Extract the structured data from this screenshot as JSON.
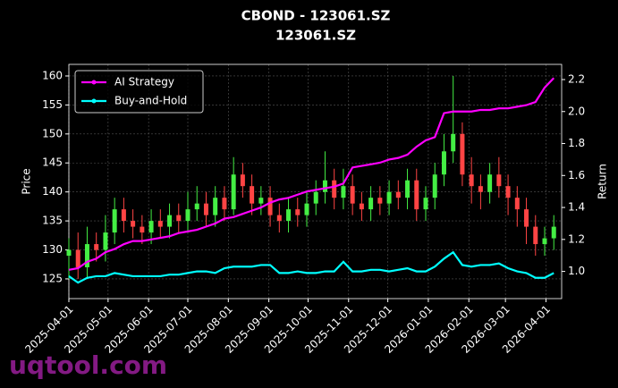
{
  "chart_data": {
    "type": "candlestick",
    "title": "CBOND - 123061.SZ",
    "subtitle": "123061.SZ",
    "ylabel": "Price",
    "y2label": "Return",
    "watermark": "uqtool.com",
    "x": [
      "2025-04-01",
      "2025-04-08",
      "2025-04-15",
      "2025-04-22",
      "2025-04-29",
      "2025-05-06",
      "2025-05-13",
      "2025-05-20",
      "2025-05-27",
      "2025-06-03",
      "2025-06-10",
      "2025-06-17",
      "2025-06-24",
      "2025-07-01",
      "2025-07-08",
      "2025-07-15",
      "2025-07-22",
      "2025-07-29",
      "2025-08-05",
      "2025-08-12",
      "2025-08-19",
      "2025-08-26",
      "2025-09-02",
      "2025-09-09",
      "2025-09-16",
      "2025-09-23",
      "2025-09-30",
      "2025-10-07",
      "2025-10-14",
      "2025-10-21",
      "2025-10-28",
      "2025-11-04",
      "2025-11-11",
      "2025-11-18",
      "2025-11-25",
      "2025-12-02",
      "2025-12-09",
      "2025-12-16",
      "2025-12-23",
      "2025-12-30",
      "2026-01-06",
      "2026-01-13",
      "2026-01-20",
      "2026-01-27",
      "2026-02-03",
      "2026-02-10",
      "2026-02-17",
      "2026-02-24",
      "2026-03-03",
      "2026-03-10",
      "2026-03-17",
      "2026-03-24",
      "2026-03-31",
      "2026-04-07"
    ],
    "open": [
      129,
      130,
      127,
      131,
      130,
      133,
      137,
      135,
      134,
      133,
      135,
      134,
      136,
      135,
      137,
      138,
      136,
      139,
      137,
      143,
      141,
      138,
      139,
      136,
      135,
      137,
      136,
      138,
      140,
      142,
      139,
      141,
      138,
      137,
      139,
      138,
      140,
      139,
      142,
      137,
      139,
      143,
      147,
      150,
      143,
      141,
      140,
      143,
      141,
      139,
      137,
      134,
      131,
      132
    ],
    "high": [
      132,
      133,
      134,
      133,
      136,
      139,
      139,
      137,
      136,
      137,
      137,
      138,
      138,
      140,
      141,
      140,
      141,
      141,
      146,
      145,
      143,
      141,
      141,
      138,
      139,
      139,
      140,
      142,
      147,
      144,
      144,
      143,
      140,
      141,
      141,
      142,
      142,
      144,
      144,
      141,
      145,
      150,
      160,
      152,
      146,
      143,
      145,
      146,
      143,
      141,
      139,
      136,
      134,
      136
    ],
    "low": [
      125,
      125,
      125,
      128,
      128,
      131,
      133,
      132,
      131,
      131,
      132,
      132,
      133,
      133,
      135,
      134,
      134,
      135,
      136,
      139,
      136,
      136,
      134,
      133,
      133,
      134,
      134,
      136,
      138,
      137,
      137,
      136,
      135,
      135,
      136,
      136,
      137,
      137,
      135,
      135,
      137,
      141,
      145,
      141,
      138,
      137,
      138,
      139,
      136,
      134,
      131,
      129,
      129,
      130
    ],
    "close": [
      130,
      127,
      131,
      130,
      133,
      137,
      135,
      134,
      133,
      135,
      134,
      136,
      135,
      137,
      138,
      136,
      139,
      137,
      143,
      141,
      138,
      139,
      136,
      135,
      137,
      136,
      138,
      140,
      142,
      139,
      141,
      138,
      137,
      139,
      138,
      140,
      139,
      142,
      137,
      139,
      143,
      147,
      150,
      143,
      141,
      140,
      143,
      141,
      139,
      137,
      134,
      131,
      132,
      134
    ],
    "up_color": "#44ee44",
    "down_color": "#ff4444",
    "series": [
      {
        "name": "AI Strategy",
        "color": "#ff00ff",
        "axis": "y2",
        "values": [
          1.01,
          1.02,
          1.06,
          1.08,
          1.12,
          1.14,
          1.17,
          1.19,
          1.19,
          1.2,
          1.21,
          1.22,
          1.24,
          1.25,
          1.26,
          1.28,
          1.3,
          1.33,
          1.34,
          1.36,
          1.38,
          1.4,
          1.43,
          1.45,
          1.46,
          1.48,
          1.5,
          1.51,
          1.52,
          1.53,
          1.55,
          1.65,
          1.66,
          1.67,
          1.68,
          1.7,
          1.71,
          1.73,
          1.78,
          1.82,
          1.84,
          1.99,
          2.0,
          2.0,
          2.0,
          2.01,
          2.01,
          2.02,
          2.02,
          2.03,
          2.04,
          2.06,
          2.15,
          2.21
        ]
      },
      {
        "name": "Buy-and-Hold",
        "color": "#00ffff",
        "axis": "y2",
        "values": [
          0.97,
          0.93,
          0.96,
          0.97,
          0.97,
          0.99,
          0.98,
          0.97,
          0.97,
          0.97,
          0.97,
          0.98,
          0.98,
          0.99,
          1.0,
          1.0,
          0.99,
          1.02,
          1.03,
          1.03,
          1.03,
          1.04,
          1.04,
          0.99,
          0.99,
          1.0,
          0.99,
          0.99,
          1.0,
          1.0,
          1.06,
          1.0,
          1.0,
          1.01,
          1.01,
          1.0,
          1.01,
          1.02,
          1.0,
          1.0,
          1.03,
          1.08,
          1.12,
          1.04,
          1.03,
          1.04,
          1.04,
          1.05,
          1.02,
          1.0,
          0.99,
          0.96,
          0.96,
          0.99
        ]
      }
    ],
    "xlim": [
      "2025-04-01",
      "2026-04-13"
    ],
    "xticks": [
      "2025-04-01",
      "2025-05-01",
      "2025-06-01",
      "2025-07-01",
      "2025-08-01",
      "2025-09-01",
      "2025-10-01",
      "2025-11-01",
      "2025-12-01",
      "2026-01-01",
      "2026-02-01",
      "2026-03-01",
      "2026-04-01"
    ],
    "ylim": [
      121.6,
      162
    ],
    "yticks": [
      125,
      130,
      135,
      140,
      145,
      150,
      155,
      160
    ],
    "y2lim": [
      0.83,
      2.295
    ],
    "y2ticks": [
      {
        "value": 1.0,
        "label": "1.0"
      },
      1.2,
      1.4,
      1.6,
      1.8,
      {
        "value": 2.0,
        "label": "2.0"
      },
      2.2
    ],
    "grid": true,
    "legend": "upper left"
  }
}
